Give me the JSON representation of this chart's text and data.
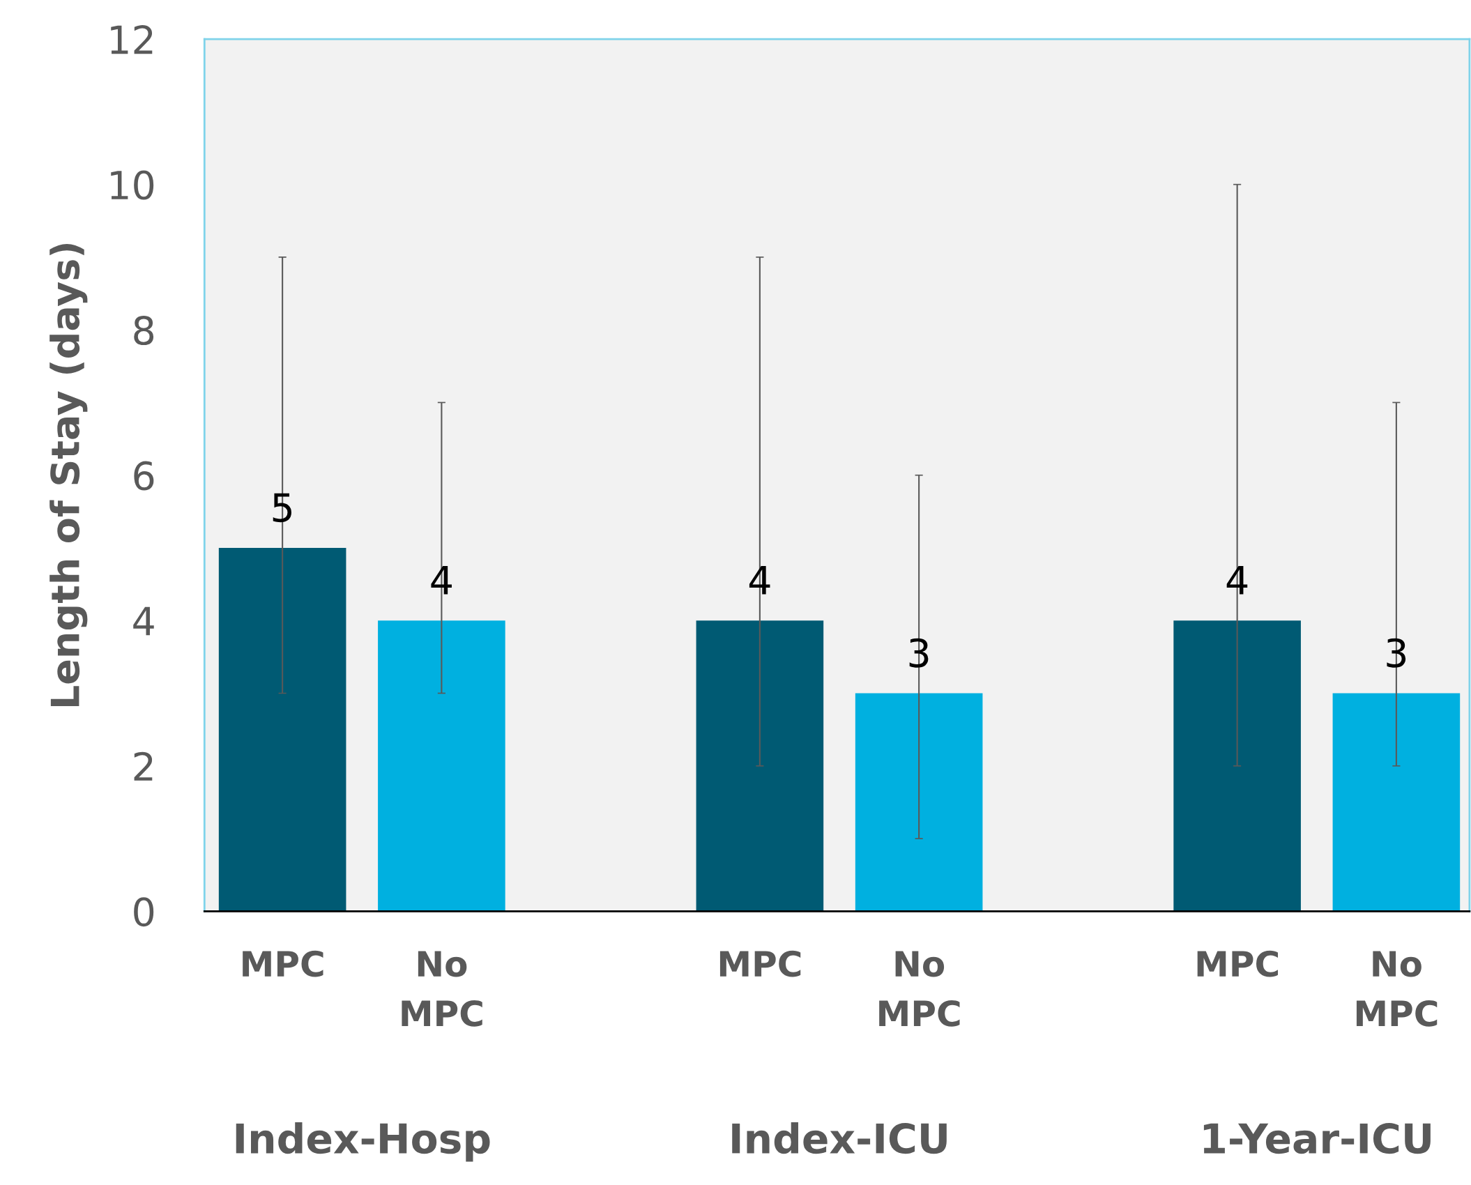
{
  "chart_data": {
    "type": "bar",
    "ylabel": "Length of Stay (days)",
    "categories": [
      "MPC",
      "No MPC",
      null,
      "MPC",
      "No MPC",
      null,
      "MPC",
      "No MPC"
    ],
    "values": [
      5,
      4,
      null,
      4,
      3,
      null,
      4,
      3
    ],
    "colors": [
      "#005a73",
      "#00b0e0",
      null,
      "#005a73",
      "#00b0e0",
      null,
      "#005a73",
      "#00b0e0"
    ],
    "errors": [
      [
        3,
        9
      ],
      [
        3,
        7
      ],
      null,
      [
        2,
        9
      ],
      [
        1,
        6
      ],
      null,
      [
        2,
        10
      ],
      [
        2,
        7
      ]
    ],
    "ylim": [
      0,
      12
    ],
    "yticks": [
      0,
      2,
      4,
      6,
      8,
      10,
      12
    ],
    "grid": false,
    "legend": false,
    "data_labels": true,
    "annotations": [
      "Index-Hosp",
      "Index-ICU",
      "1-Year-ICU"
    ]
  }
}
